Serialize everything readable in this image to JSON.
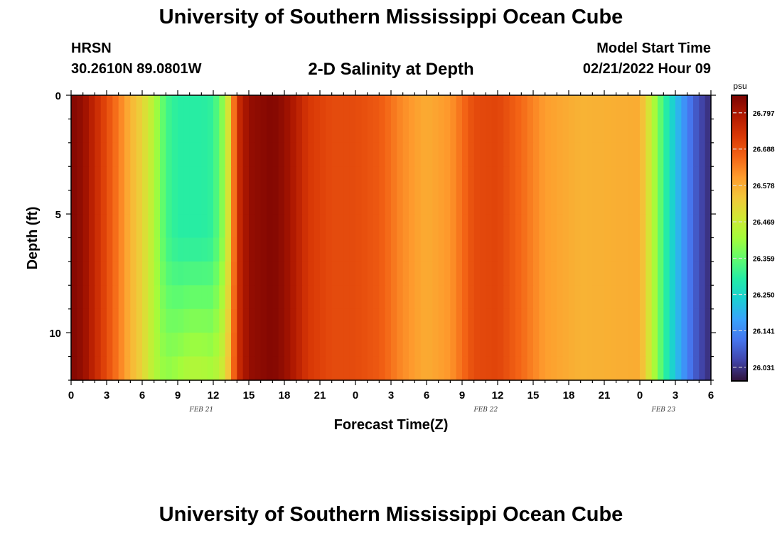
{
  "header": {
    "title": "University of Southern Mississippi Ocean Cube",
    "station": "HRSN",
    "coordinates": "30.2610N  89.0801W",
    "plot_title": "2-D Salinity at Depth",
    "model_start_label": "Model Start Time",
    "model_start_value": "02/21/2022 Hour 09"
  },
  "footer": {
    "title": "University of Southern Mississippi Ocean Cube"
  },
  "chart_data": {
    "type": "heatmap",
    "title": "2-D Salinity at Depth",
    "xlabel": "Forecast Time(Z)",
    "ylabel": "Depth (ft)",
    "x_ticks": [
      "0",
      "3",
      "6",
      "9",
      "12",
      "15",
      "18",
      "21",
      "0",
      "3",
      "6",
      "9",
      "12",
      "15",
      "18",
      "21",
      "0",
      "3",
      "6"
    ],
    "date_labels": [
      {
        "label": "FEB 21",
        "at_hour": 11
      },
      {
        "label": "FEB 22",
        "at_hour": 35
      },
      {
        "label": "FEB 23",
        "at_hour": 50
      }
    ],
    "xlim": [
      0,
      54
    ],
    "y_ticks": [
      0,
      5,
      10
    ],
    "ylim": [
      0,
      12
    ],
    "colorbar": {
      "unit": "psu",
      "range": [
        25.99,
        26.85
      ],
      "tick_values": [
        "26.797",
        "26.688",
        "26.578",
        "26.469",
        "26.359",
        "26.250",
        "26.141",
        "26.031"
      ],
      "colors": [
        "#30123b",
        "#4145ab",
        "#4675ed",
        "#39a2fc",
        "#1bcfd4",
        "#24eca6",
        "#61fc6c",
        "#a4fc3b",
        "#d1e834",
        "#f3c63a",
        "#fe9b2d",
        "#f36315",
        "#d93806",
        "#b11901",
        "#7a0402"
      ]
    },
    "surface_salinity_by_hour": [
      {
        "hour": 0,
        "psu": 26.84
      },
      {
        "hour": 1,
        "psu": 26.82
      },
      {
        "hour": 2,
        "psu": 26.76
      },
      {
        "hour": 3,
        "psu": 26.7
      },
      {
        "hour": 4,
        "psu": 26.64
      },
      {
        "hour": 5,
        "psu": 26.57
      },
      {
        "hour": 6,
        "psu": 26.52
      },
      {
        "hour": 7,
        "psu": 26.44
      },
      {
        "hour": 8,
        "psu": 26.33
      },
      {
        "hour": 9,
        "psu": 26.3
      },
      {
        "hour": 10,
        "psu": 26.3
      },
      {
        "hour": 11,
        "psu": 26.3
      },
      {
        "hour": 12,
        "psu": 26.31
      },
      {
        "hour": 13,
        "psu": 26.42
      },
      {
        "hour": 13.5,
        "psu": 26.56
      },
      {
        "hour": 14,
        "psu": 26.74
      },
      {
        "hour": 15,
        "psu": 26.82
      },
      {
        "hour": 17,
        "psu": 26.84
      },
      {
        "hour": 18,
        "psu": 26.82
      },
      {
        "hour": 19,
        "psu": 26.78
      },
      {
        "hour": 20,
        "psu": 26.73
      },
      {
        "hour": 22,
        "psu": 26.7
      },
      {
        "hour": 24,
        "psu": 26.7
      },
      {
        "hour": 26,
        "psu": 26.68
      },
      {
        "hour": 28,
        "psu": 26.62
      },
      {
        "hour": 30,
        "psu": 26.58
      },
      {
        "hour": 32,
        "psu": 26.61
      },
      {
        "hour": 34,
        "psu": 26.7
      },
      {
        "hour": 36,
        "psu": 26.71
      },
      {
        "hour": 38,
        "psu": 26.66
      },
      {
        "hour": 40,
        "psu": 26.6
      },
      {
        "hour": 43,
        "psu": 26.57
      },
      {
        "hour": 48,
        "psu": 26.58
      },
      {
        "hour": 48.5,
        "psu": 26.52
      },
      {
        "hour": 49,
        "psu": 26.46
      },
      {
        "hour": 50,
        "psu": 26.32
      },
      {
        "hour": 51,
        "psu": 26.22
      },
      {
        "hour": 52,
        "psu": 26.13
      },
      {
        "hour": 53,
        "psu": 26.06
      },
      {
        "hour": 54,
        "psu": 26.02
      }
    ],
    "freshening_at_depth": {
      "hour_range": [
        7,
        14
      ],
      "depth_range_ft": [
        6,
        12
      ],
      "max_increase_psu": 0.15
    }
  }
}
